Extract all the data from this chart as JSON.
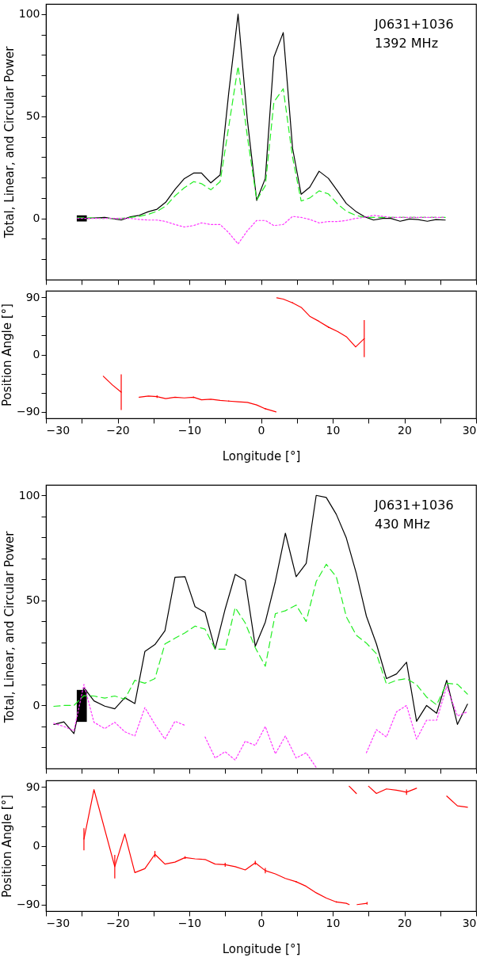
{
  "chart_data": [
    {
      "type": "line",
      "annotations": [
        "J0631+1036",
        "1392 MHz"
      ],
      "ylabel": "Total, Linear, and Circular Power",
      "tick_labels": "y",
      "xlim": [
        -30,
        30
      ],
      "xticks": [
        {
          "value": -30,
          "label": null
        },
        {
          "value": -25,
          "label": null
        },
        {
          "value": -20,
          "label": null
        },
        {
          "value": -15,
          "label": null
        },
        {
          "value": -10,
          "label": null
        },
        {
          "value": -5,
          "label": null
        },
        {
          "value": 0,
          "label": null
        },
        {
          "value": 5,
          "label": null
        },
        {
          "value": 10,
          "label": null
        },
        {
          "value": 15,
          "label": null
        },
        {
          "value": 20,
          "label": null
        },
        {
          "value": 25,
          "label": null
        },
        {
          "value": 30,
          "label": null
        }
      ],
      "ylim": [
        -30,
        105
      ],
      "yticks": [
        {
          "value": -20,
          "label": null
        },
        {
          "value": -10,
          "label": null
        },
        0,
        {
          "value": 10,
          "label": null
        },
        {
          "value": 20,
          "label": null
        },
        {
          "value": 30,
          "label": null
        },
        {
          "value": 40,
          "label": null
        },
        50,
        {
          "value": 60,
          "label": null
        },
        {
          "value": 70,
          "label": null
        },
        {
          "value": 80,
          "label": null
        },
        {
          "value": 90,
          "label": null
        },
        100
      ],
      "x": [
        -25.6,
        -24.1,
        -21.8,
        -19.5,
        -18.2,
        -17,
        -15.7,
        -14.5,
        -13.3,
        -12,
        -10.7,
        -9.4,
        -8.3,
        -7,
        -5.7,
        -4.5,
        -3.2,
        -1.9,
        -0.6,
        0.6,
        1.8,
        3.1,
        4.4,
        5.6,
        6.8,
        8.1,
        9.4,
        10.7,
        11.9,
        13.2,
        14.4,
        15.7,
        17,
        18.1,
        19.4,
        20.7,
        21.9,
        23.2,
        24.4,
        25.7
      ],
      "series": [
        {
          "color": "#000000",
          "line_style": "solid",
          "values": [
            0,
            0,
            0.5,
            -0.8,
            0.8,
            1.5,
            3.3,
            4.5,
            7.9,
            14.2,
            19.5,
            22.2,
            22.2,
            17.4,
            21.3,
            61.6,
            100,
            48,
            8.8,
            19.6,
            79,
            91,
            34.4,
            11.8,
            15.3,
            23.1,
            19.6,
            13.3,
            7.3,
            3.5,
            0.9,
            -0.8,
            0,
            0,
            -1.4,
            -0.3,
            -0.6,
            -1.4,
            -0.6,
            -0.8
          ]
        },
        {
          "color": "#22ee22",
          "line_style": "dashed",
          "values": [
            0.3,
            0.3,
            0,
            0,
            0.5,
            1,
            2,
            3.5,
            6,
            11,
            15,
            18,
            17,
            14,
            18,
            45,
            74.5,
            40,
            9,
            16,
            57,
            63.5,
            30,
            8.5,
            10,
            13.5,
            12,
            7,
            3.5,
            1.5,
            0.5,
            0.5,
            0.5,
            0.5,
            0.5,
            0.5,
            0.5,
            0.5,
            0.5,
            0.5
          ]
        },
        {
          "color": "#ff33ff",
          "line_style": "dotted",
          "values": [
            0,
            0,
            0,
            0,
            0,
            -0.5,
            -0.8,
            -0.8,
            -1.5,
            -3,
            -4.2,
            -3.5,
            -2.2,
            -3,
            -3,
            -7,
            -12.5,
            -6,
            -1,
            -1,
            -3.5,
            -3,
            1,
            0.5,
            -0.5,
            -2.2,
            -1.5,
            -1.5,
            -1,
            0,
            0.5,
            1.5,
            1,
            0.5,
            0.5,
            0.5,
            0.5,
            0.5,
            0.5,
            0.5
          ]
        },
        {
          "type": "bar",
          "color": "#000000",
          "x": [
            -25
          ],
          "base": [
            -1.5
          ],
          "values": [
            3
          ]
        }
      ]
    },
    {
      "type": "line",
      "ylabel": "Position Angle [°]",
      "xlabel": "Longitude [°]",
      "xlim": [
        -30,
        30
      ],
      "xticks": [
        -30,
        {
          "value": -25,
          "label": null
        },
        -20,
        {
          "value": -15,
          "label": null
        },
        -10,
        {
          "value": -5,
          "label": null
        },
        0,
        {
          "value": 5,
          "label": null
        },
        10,
        {
          "value": 15,
          "label": null
        },
        20,
        {
          "value": 25,
          "label": null
        },
        30
      ],
      "ylim": [
        -100,
        100
      ],
      "yticks": [
        -90,
        {
          "value": -60,
          "label": null
        },
        {
          "value": -30,
          "label": null
        },
        0,
        {
          "value": 30,
          "label": null
        },
        {
          "value": 60,
          "label": null
        },
        90
      ],
      "series": [
        {
          "color": "#ff0000",
          "line_style": "solid",
          "x": [
            -22,
            -20.7,
            -19.5,
            -18.2,
            -17,
            -15.7,
            -14.5,
            -13.3,
            -12,
            -10.7,
            -9.4,
            -8.3,
            -7,
            -5.7,
            -4.5,
            -3.2,
            -1.9,
            -0.6,
            0.6,
            2.1
          ],
          "values": [
            -34,
            -48,
            -59,
            null,
            -67,
            -65,
            -66,
            -69,
            -67,
            -68,
            -67,
            -71,
            -70,
            -72,
            -73,
            -74,
            -75,
            -79,
            -85,
            -90
          ],
          "errors": [
            null,
            null,
            28,
            null,
            null,
            null,
            2,
            null,
            null,
            null,
            1,
            null,
            null,
            null,
            1,
            null,
            null,
            null,
            1,
            null
          ]
        },
        {
          "color": "#ff0000",
          "line_style": "solid",
          "x": [
            2.2,
            3.1,
            4.4,
            5.6,
            6.8,
            8.1,
            9.4,
            10.7,
            11.9,
            13.2,
            14.4
          ],
          "values": [
            89,
            87,
            81,
            74,
            60,
            52,
            43,
            36,
            28,
            12,
            25
          ],
          "errors": [
            null,
            null,
            1,
            null,
            null,
            null,
            1,
            null,
            null,
            null,
            29
          ]
        }
      ]
    },
    {
      "type": "line",
      "annotations": [
        "J0631+1036",
        "430 MHz"
      ],
      "ylabel": "Total, Linear, and Circular Power",
      "tick_labels": "y",
      "xlim": [
        -30,
        30
      ],
      "xticks": [
        {
          "value": -30,
          "label": null
        },
        {
          "value": -25,
          "label": null
        },
        {
          "value": -20,
          "label": null
        },
        {
          "value": -15,
          "label": null
        },
        {
          "value": -10,
          "label": null
        },
        {
          "value": -5,
          "label": null
        },
        {
          "value": 0,
          "label": null
        },
        {
          "value": 5,
          "label": null
        },
        {
          "value": 10,
          "label": null
        },
        {
          "value": 15,
          "label": null
        },
        {
          "value": 20,
          "label": null
        },
        {
          "value": 25,
          "label": null
        },
        {
          "value": 30,
          "label": null
        }
      ],
      "ylim": [
        -30,
        105
      ],
      "yticks": [
        {
          "value": -20,
          "label": null
        },
        {
          "value": -10,
          "label": null
        },
        0,
        {
          "value": 10,
          "label": null
        },
        {
          "value": 20,
          "label": null
        },
        {
          "value": 30,
          "label": null
        },
        {
          "value": 40,
          "label": null
        },
        50,
        {
          "value": 60,
          "label": null
        },
        {
          "value": 70,
          "label": null
        },
        {
          "value": 80,
          "label": null
        },
        {
          "value": 90,
          "label": null
        },
        100
      ],
      "x": [
        -28.9,
        -27.5,
        -26.1,
        -24.7,
        -23.3,
        -21.8,
        -20.4,
        -19,
        -17.6,
        -16.2,
        -14.8,
        -13.4,
        -12,
        -10.6,
        -9.2,
        -7.8,
        -6.4,
        -5,
        -3.6,
        -2.2,
        -0.8,
        0.6,
        2,
        3.4,
        4.9,
        6.3,
        7.7,
        9.1,
        10.5,
        11.9,
        13.3,
        14.7,
        16.1,
        17.5,
        18.9,
        20.3,
        21.7,
        23.1,
        24.5,
        25.9,
        27.4,
        28.8
      ],
      "series": [
        {
          "color": "#000000",
          "line_style": "solid",
          "values": [
            -9,
            -7.8,
            -13.4,
            8.4,
            2.2,
            -0.3,
            -1.6,
            3.7,
            0.9,
            25.7,
            29,
            35.6,
            61,
            61.3,
            47,
            44.3,
            26.8,
            45.9,
            62.4,
            59.6,
            28.2,
            39.7,
            59,
            82,
            61.3,
            67.6,
            100,
            99,
            91,
            79.7,
            62.8,
            42.5,
            29.3,
            12.8,
            15,
            20.6,
            -7.5,
            0,
            -3.7,
            12,
            -9,
            0.6
          ]
        },
        {
          "color": "#22ee22",
          "line_style": "dashed",
          "values": [
            -0.4,
            0,
            0,
            4.7,
            4.5,
            3.5,
            4.5,
            3,
            12,
            10.6,
            12.8,
            29.3,
            32,
            34.6,
            37.8,
            36.3,
            26.8,
            26.8,
            46.6,
            39.3,
            27.5,
            18.7,
            43.7,
            45.1,
            47.8,
            40,
            59,
            67.2,
            61.3,
            42.2,
            33.4,
            29.7,
            24.6,
            10.1,
            12,
            12.8,
            9.9,
            4,
            0.3,
            10.6,
            10.1,
            5.4
          ]
        },
        {
          "color": "#ff33ff",
          "line_style": "dotted",
          "values": [
            -8.5,
            -10,
            -12,
            10,
            -8,
            -11,
            -8,
            -12.5,
            -14.5,
            -1,
            -9,
            -16,
            -7.5,
            -9.5,
            null,
            -15,
            -25,
            -22,
            -26,
            -17,
            -19,
            -10,
            -23,
            -14.5,
            -25,
            -22.5,
            -29.5,
            null,
            null,
            null,
            null,
            -22.5,
            -11.5,
            -15,
            -3,
            0,
            -16,
            -7,
            -7,
            9,
            -5,
            -3
          ]
        },
        {
          "type": "bar",
          "color": "#000000",
          "x": [
            -25
          ],
          "base": [
            -7.8
          ],
          "values": [
            15.2
          ]
        }
      ]
    },
    {
      "type": "line",
      "ylabel": "Position Angle [°]",
      "xlabel": "Longitude [°]",
      "xlim": [
        -30,
        30
      ],
      "xticks": [
        -30,
        {
          "value": -25,
          "label": null
        },
        -20,
        {
          "value": -15,
          "label": null
        },
        -10,
        {
          "value": -5,
          "label": null
        },
        0,
        {
          "value": 5,
          "label": null
        },
        10,
        {
          "value": 15,
          "label": null
        },
        20,
        {
          "value": 25,
          "label": null
        },
        30
      ],
      "ylim": [
        -100,
        100
      ],
      "yticks": [
        -90,
        {
          "value": -60,
          "label": null
        },
        {
          "value": -30,
          "label": null
        },
        0,
        {
          "value": 30,
          "label": null
        },
        {
          "value": 60,
          "label": null
        },
        90
      ],
      "series": [
        {
          "color": "#ff0000",
          "line_style": "solid",
          "x": [
            -24.7,
            -23.3,
            -20.4,
            -19,
            -17.6,
            -16.2,
            -14.8,
            -13.4,
            -12,
            -10.6,
            -9.2,
            -7.8,
            -6.4,
            -5,
            -3.6,
            -2.2,
            -0.8,
            0.6,
            2,
            3.4,
            4.9,
            6.3,
            7.7,
            9.1,
            10.5,
            11.9,
            12.3,
            12.9,
            13.4,
            14.8
          ],
          "values": [
            10,
            86,
            -32,
            18,
            -41,
            -35,
            -13,
            -28,
            -25,
            -18,
            -20,
            -21,
            -28,
            -29,
            -32,
            -37,
            -26,
            -38,
            -43,
            -50,
            -55,
            -62,
            -72,
            -80,
            -86,
            -88,
            -90,
            null,
            -90,
            -88
          ],
          "errors": [
            17,
            null,
            18,
            null,
            null,
            null,
            5,
            null,
            null,
            2,
            null,
            null,
            null,
            3,
            null,
            null,
            3,
            4,
            null,
            null,
            1,
            null,
            null,
            null,
            1,
            null,
            null,
            null,
            null,
            2
          ]
        },
        {
          "color": "#ff0000",
          "line_style": "solid",
          "x": [
            12.3,
            13.3,
            13.9,
            15,
            16.1,
            17.5,
            18.9,
            20.3,
            21.7,
            23,
            25.9,
            27.4,
            28.8
          ],
          "values": [
            91,
            80,
            null,
            91,
            80,
            87,
            85,
            82,
            88,
            null,
            76,
            61,
            59
          ],
          "errors": [
            null,
            null,
            null,
            null,
            null,
            null,
            null,
            4,
            null,
            null,
            null,
            null,
            null
          ]
        }
      ]
    }
  ]
}
